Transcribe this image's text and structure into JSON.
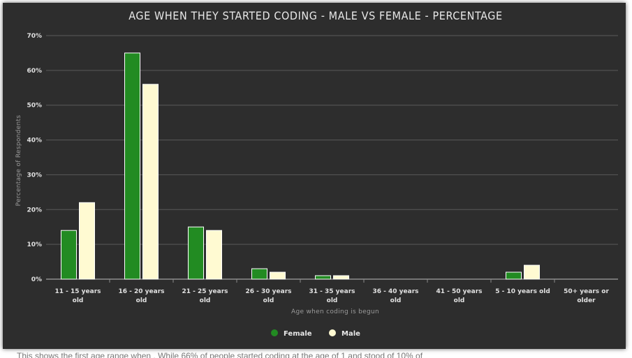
{
  "chart_data": {
    "type": "bar",
    "title": "AGE WHEN THEY STARTED CODING - MALE VS FEMALE - PERCENTAGE",
    "xlabel": "Age when coding is begun",
    "ylabel": "Percentage of Respondents",
    "ylim": [
      0,
      70
    ],
    "yticks": [
      "0%",
      "10%",
      "20%",
      "30%",
      "40%",
      "50%",
      "60%",
      "70%"
    ],
    "ytick_values": [
      0,
      10,
      20,
      30,
      40,
      50,
      60,
      70
    ],
    "grid": true,
    "legend_position": "bottom",
    "categories": [
      [
        "11 - 15 years",
        "old"
      ],
      [
        "16 - 20 years",
        "old"
      ],
      [
        "21 - 25 years",
        "old"
      ],
      [
        "26 - 30 years",
        "old"
      ],
      [
        "31 - 35 years",
        "old"
      ],
      [
        "36 - 40 years",
        "old"
      ],
      [
        "41 - 50 years",
        "old"
      ],
      [
        "5 - 10 years old"
      ],
      [
        "50+ years or",
        "older"
      ]
    ],
    "series": [
      {
        "name": "Female",
        "color": "#228b22",
        "values": [
          14,
          65,
          15,
          3,
          1,
          0,
          0,
          2,
          0
        ]
      },
      {
        "name": "Male",
        "color": "#fffad2",
        "values": [
          22,
          56,
          14,
          2,
          1,
          0,
          0,
          4,
          0
        ]
      }
    ]
  },
  "caption": "This shows the first age range when . While 66% of people started coding at the age of 1 and stood of 10% of"
}
